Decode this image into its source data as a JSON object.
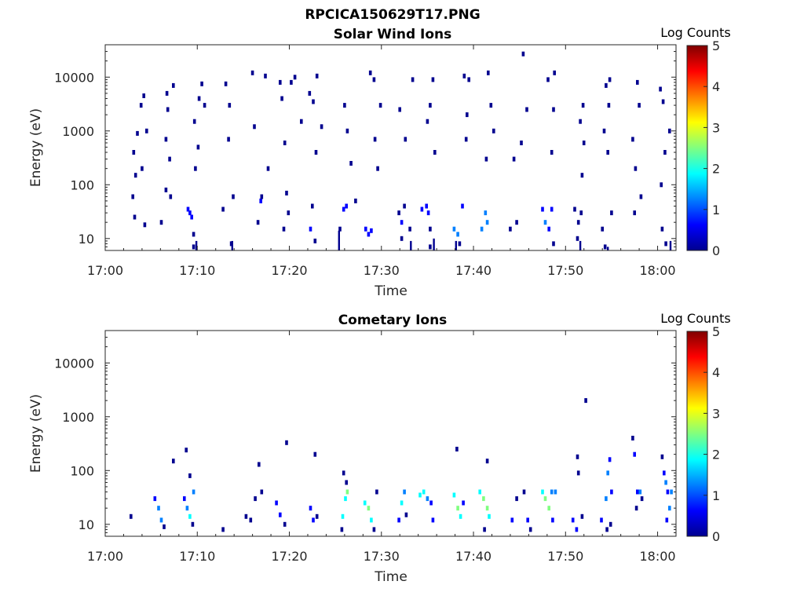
{
  "figure": {
    "title": "RPCICA150629T17.PNG"
  },
  "colorscale": [
    "#00008f",
    "#0000ff",
    "#0080ff",
    "#00ffff",
    "#80ff80",
    "#ffff00",
    "#ff8000",
    "#ff0000",
    "#800000"
  ],
  "chart_data": [
    {
      "type": "heatmap",
      "title": "Solar Wind Ions",
      "xlabel": "Time",
      "ylabel": "Energy (eV)",
      "x_ticks": [
        "17:00",
        "17:10",
        "17:20",
        "17:30",
        "17:40",
        "17:50",
        "18:00"
      ],
      "x_range_minutes": [
        0,
        62
      ],
      "y_ticks": [
        "10",
        "100",
        "1000",
        "10000"
      ],
      "y_scale": "log",
      "y_range": [
        6,
        40000
      ],
      "colorbar": {
        "label": "Log Counts",
        "ticks": [
          "0",
          "1",
          "2",
          "3",
          "4",
          "5"
        ],
        "range": [
          0,
          5
        ]
      },
      "cells": [
        [
          3.0,
          60,
          0.2
        ],
        [
          3.2,
          25,
          0.2
        ],
        [
          3.1,
          400,
          0.2
        ],
        [
          3.3,
          150,
          0.2
        ],
        [
          3.5,
          900,
          0.2
        ],
        [
          3.9,
          3000,
          0.2
        ],
        [
          4.2,
          4500,
          0.2
        ],
        [
          4.0,
          200,
          0.2
        ],
        [
          4.5,
          1000,
          0.2
        ],
        [
          4.3,
          18,
          0.2
        ],
        [
          6.1,
          20,
          0.2
        ],
        [
          6.6,
          80,
          0.2
        ],
        [
          6.7,
          5000,
          0.2
        ],
        [
          6.8,
          2500,
          0.2
        ],
        [
          6.6,
          700,
          0.2
        ],
        [
          7.0,
          300,
          0.2
        ],
        [
          7.4,
          7000,
          0.2
        ],
        [
          7.1,
          60,
          0.2
        ],
        [
          9.2,
          30,
          0.4
        ],
        [
          9.0,
          35,
          0.4
        ],
        [
          9.4,
          25,
          0.4
        ],
        [
          9.6,
          12,
          0.2
        ],
        [
          9.6,
          7,
          0.2
        ],
        [
          9.8,
          200,
          0.2
        ],
        [
          10.2,
          4000,
          0.2
        ],
        [
          10.8,
          3000,
          0.2
        ],
        [
          10.5,
          7500,
          0.2
        ],
        [
          9.7,
          1500,
          0.2
        ],
        [
          10.1,
          500,
          0.2
        ],
        [
          12.8,
          35,
          0.2
        ],
        [
          13.1,
          7500,
          0.2
        ],
        [
          13.5,
          3000,
          0.2
        ],
        [
          13.9,
          60,
          0.2
        ],
        [
          13.4,
          700,
          0.2
        ],
        [
          13.7,
          8,
          0.2
        ],
        [
          16.0,
          12000,
          0.2
        ],
        [
          16.2,
          1200,
          0.2
        ],
        [
          16.6,
          20,
          0.2
        ],
        [
          16.9,
          50,
          0.4
        ],
        [
          17.0,
          60,
          0.2
        ],
        [
          17.7,
          200,
          0.2
        ],
        [
          17.4,
          10500,
          0.2
        ],
        [
          19.0,
          8000,
          0.2
        ],
        [
          19.2,
          4000,
          0.2
        ],
        [
          19.5,
          600,
          0.2
        ],
        [
          19.9,
          30,
          0.2
        ],
        [
          20.2,
          8000,
          0.2
        ],
        [
          19.4,
          15,
          0.2
        ],
        [
          20.6,
          10000,
          0.2
        ],
        [
          19.7,
          70,
          0.2
        ],
        [
          21.3,
          1500,
          0.2
        ],
        [
          22.2,
          5000,
          0.2
        ],
        [
          22.6,
          3500,
          0.2
        ],
        [
          22.3,
          15,
          0.4
        ],
        [
          22.5,
          40,
          0.2
        ],
        [
          22.8,
          9,
          0.2
        ],
        [
          23.0,
          10500,
          0.2
        ],
        [
          22.9,
          400,
          0.2
        ],
        [
          23.5,
          1200,
          0.2
        ],
        [
          25.5,
          15,
          0.2
        ],
        [
          25.9,
          35,
          0.6
        ],
        [
          26.2,
          40,
          0.4
        ],
        [
          26.0,
          3000,
          0.2
        ],
        [
          26.3,
          1000,
          0.2
        ],
        [
          27.2,
          50,
          0.2
        ],
        [
          26.7,
          250,
          0.2
        ],
        [
          28.3,
          15,
          0.6
        ],
        [
          28.6,
          12,
          0.8
        ],
        [
          28.9,
          14,
          0.6
        ],
        [
          28.8,
          12000,
          0.2
        ],
        [
          29.2,
          9000,
          0.2
        ],
        [
          29.9,
          3000,
          0.2
        ],
        [
          29.6,
          200,
          0.2
        ],
        [
          29.3,
          700,
          0.2
        ],
        [
          31.9,
          30,
          0.2
        ],
        [
          32.2,
          20,
          0.6
        ],
        [
          32.5,
          40,
          0.2
        ],
        [
          32.2,
          10,
          0.2
        ],
        [
          33.1,
          15,
          0.2
        ],
        [
          32.0,
          2500,
          0.2
        ],
        [
          33.4,
          9000,
          0.2
        ],
        [
          32.6,
          700,
          0.2
        ],
        [
          34.4,
          35,
          0.4
        ],
        [
          34.9,
          40,
          0.4
        ],
        [
          35.1,
          30,
          0.4
        ],
        [
          35.3,
          15,
          0.2
        ],
        [
          35.6,
          9000,
          0.2
        ],
        [
          35.3,
          3000,
          0.2
        ],
        [
          35.0,
          1500,
          0.2
        ],
        [
          35.8,
          400,
          0.2
        ],
        [
          35.3,
          7,
          0.2
        ],
        [
          37.9,
          15,
          1.0
        ],
        [
          38.3,
          12,
          1.0
        ],
        [
          38.5,
          8,
          0.2
        ],
        [
          38.8,
          40,
          0.6
        ],
        [
          39.0,
          10500,
          0.2
        ],
        [
          39.3,
          2000,
          0.2
        ],
        [
          39.5,
          9000,
          0.2
        ],
        [
          39.2,
          700,
          0.2
        ],
        [
          40.9,
          15,
          1.0
        ],
        [
          41.3,
          30,
          1.0
        ],
        [
          41.5,
          20,
          1.0
        ],
        [
          41.6,
          12000,
          0.2
        ],
        [
          41.9,
          3000,
          0.2
        ],
        [
          42.2,
          1000,
          0.2
        ],
        [
          41.4,
          300,
          0.2
        ],
        [
          44.0,
          15,
          0.2
        ],
        [
          44.7,
          20,
          0.2
        ],
        [
          44.4,
          300,
          0.2
        ],
        [
          45.2,
          600,
          0.2
        ],
        [
          45.4,
          27000,
          0.2
        ],
        [
          45.8,
          2500,
          0.2
        ],
        [
          47.5,
          35,
          0.6
        ],
        [
          47.8,
          20,
          1.0
        ],
        [
          48.2,
          15,
          0.8
        ],
        [
          48.5,
          35,
          0.4
        ],
        [
          48.1,
          9000,
          0.2
        ],
        [
          48.8,
          12000,
          0.2
        ],
        [
          48.5,
          400,
          0.2
        ],
        [
          48.7,
          2500,
          0.2
        ],
        [
          48.7,
          8,
          0.2
        ],
        [
          51.0,
          35,
          0.2
        ],
        [
          51.4,
          20,
          0.2
        ],
        [
          51.3,
          10,
          0.2
        ],
        [
          51.6,
          1500,
          0.2
        ],
        [
          51.8,
          150,
          0.2
        ],
        [
          52.0,
          600,
          0.2
        ],
        [
          51.9,
          3000,
          0.2
        ],
        [
          51.7,
          30,
          0.2
        ],
        [
          54.0,
          15,
          0.2
        ],
        [
          54.4,
          7000,
          0.2
        ],
        [
          54.8,
          9000,
          0.2
        ],
        [
          54.6,
          400,
          0.2
        ],
        [
          54.7,
          3000,
          0.2
        ],
        [
          54.2,
          1000,
          0.2
        ],
        [
          55.0,
          30,
          0.2
        ],
        [
          54.3,
          7,
          0.2
        ],
        [
          57.3,
          700,
          0.2
        ],
        [
          57.6,
          200,
          0.2
        ],
        [
          57.8,
          8000,
          0.2
        ],
        [
          58.0,
          3000,
          0.2
        ],
        [
          58.2,
          60,
          0.2
        ],
        [
          57.5,
          30,
          0.2
        ],
        [
          60.3,
          6000,
          0.2
        ],
        [
          60.6,
          3500,
          0.2
        ],
        [
          60.8,
          400,
          0.2
        ],
        [
          60.4,
          100,
          0.2
        ],
        [
          60.5,
          15,
          0.2
        ],
        [
          61.3,
          1000,
          0.2
        ],
        [
          60.9,
          8,
          0.2
        ]
      ],
      "streaks": [
        [
          9.9,
          6,
          9
        ],
        [
          13.8,
          6,
          9
        ],
        [
          25.4,
          6,
          14
        ],
        [
          33.2,
          6,
          9
        ],
        [
          35.7,
          6,
          10
        ],
        [
          38.1,
          6,
          9
        ],
        [
          51.6,
          6,
          9
        ],
        [
          54.6,
          6,
          7
        ],
        [
          61.4,
          6,
          9
        ]
      ]
    },
    {
      "type": "heatmap",
      "title": "Cometary Ions",
      "xlabel": "Time",
      "ylabel": "Energy (eV)",
      "x_ticks": [
        "17:00",
        "17:10",
        "17:20",
        "17:30",
        "17:40",
        "17:50",
        "18:00"
      ],
      "x_range_minutes": [
        0,
        62
      ],
      "y_ticks": [
        "10",
        "100",
        "1000",
        "10000"
      ],
      "y_scale": "log",
      "y_range": [
        6,
        40000
      ],
      "colorbar": {
        "label": "Log Counts",
        "ticks": [
          "0",
          "1",
          "2",
          "3",
          "4",
          "5"
        ],
        "range": [
          0,
          5
        ]
      },
      "cells": [
        [
          2.8,
          14,
          0.2
        ],
        [
          5.4,
          30,
          0.6
        ],
        [
          5.8,
          20,
          1.0
        ],
        [
          6.1,
          12,
          1.0
        ],
        [
          6.4,
          9,
          0.2
        ],
        [
          7.4,
          150,
          0.2
        ],
        [
          8.6,
          30,
          0.4
        ],
        [
          8.9,
          20,
          1.0
        ],
        [
          9.2,
          14,
          1.6
        ],
        [
          9.6,
          40,
          1.0
        ],
        [
          9.5,
          10,
          0.2
        ],
        [
          8.8,
          240,
          0.2
        ],
        [
          9.2,
          80,
          0.2
        ],
        [
          12.8,
          8,
          0.2
        ],
        [
          15.3,
          14,
          0.2
        ],
        [
          15.8,
          12,
          0.2
        ],
        [
          16.3,
          30,
          0.2
        ],
        [
          16.7,
          130,
          0.2
        ],
        [
          17.0,
          40,
          0.2
        ],
        [
          18.6,
          25,
          0.4
        ],
        [
          19.0,
          15,
          0.8
        ],
        [
          19.5,
          10,
          0.2
        ],
        [
          19.7,
          330,
          0.2
        ],
        [
          22.3,
          20,
          0.6
        ],
        [
          22.6,
          12,
          0.8
        ],
        [
          22.8,
          200,
          0.2
        ],
        [
          23.0,
          14,
          0.2
        ],
        [
          25.8,
          14,
          1.6
        ],
        [
          26.1,
          30,
          2.0
        ],
        [
          26.3,
          40,
          2.8
        ],
        [
          25.9,
          90,
          0.2
        ],
        [
          26.2,
          60,
          0.2
        ],
        [
          25.7,
          8,
          0.2
        ],
        [
          28.2,
          25,
          1.6
        ],
        [
          28.6,
          20,
          2.2
        ],
        [
          28.9,
          12,
          1.8
        ],
        [
          29.2,
          8,
          0.2
        ],
        [
          29.5,
          40,
          0.2
        ],
        [
          31.9,
          12,
          0.4
        ],
        [
          32.2,
          25,
          1.6
        ],
        [
          32.5,
          40,
          1.0
        ],
        [
          32.7,
          15,
          0.2
        ],
        [
          34.2,
          35,
          1.6
        ],
        [
          34.6,
          40,
          1.8
        ],
        [
          35.0,
          30,
          1.0
        ],
        [
          35.4,
          25,
          0.8
        ],
        [
          35.6,
          12,
          0.4
        ],
        [
          37.9,
          35,
          1.8
        ],
        [
          38.3,
          20,
          2.2
        ],
        [
          38.6,
          14,
          1.6
        ],
        [
          38.9,
          25,
          0.8
        ],
        [
          38.2,
          250,
          0.2
        ],
        [
          40.7,
          40,
          1.8
        ],
        [
          41.1,
          30,
          2.6
        ],
        [
          41.5,
          20,
          2.8
        ],
        [
          41.7,
          14,
          1.8
        ],
        [
          41.5,
          150,
          0.2
        ],
        [
          41.2,
          8,
          0.2
        ],
        [
          44.2,
          12,
          0.8
        ],
        [
          44.7,
          30,
          0.2
        ],
        [
          45.5,
          40,
          0.2
        ],
        [
          45.9,
          12,
          0.6
        ],
        [
          46.2,
          8,
          0.2
        ],
        [
          47.5,
          40,
          1.6
        ],
        [
          47.8,
          30,
          2.4
        ],
        [
          48.2,
          20,
          2.6
        ],
        [
          48.5,
          40,
          1.4
        ],
        [
          48.9,
          40,
          1.0
        ],
        [
          48.6,
          12,
          0.4
        ],
        [
          50.8,
          12,
          0.8
        ],
        [
          51.2,
          8,
          0.4
        ],
        [
          51.3,
          180,
          0.2
        ],
        [
          51.4,
          90,
          0.2
        ],
        [
          52.2,
          2000,
          0.2
        ],
        [
          51.8,
          14,
          0.2
        ],
        [
          53.9,
          12,
          0.8
        ],
        [
          54.4,
          30,
          1.2
        ],
        [
          54.6,
          90,
          1.0
        ],
        [
          54.8,
          160,
          0.8
        ],
        [
          55.0,
          40,
          0.6
        ],
        [
          54.5,
          8,
          0.2
        ],
        [
          54.9,
          10,
          0.2
        ],
        [
          57.3,
          400,
          0.2
        ],
        [
          57.5,
          200,
          0.4
        ],
        [
          57.7,
          20,
          0.2
        ],
        [
          57.8,
          40,
          0.8
        ],
        [
          58.1,
          40,
          1.4
        ],
        [
          58.3,
          30,
          0.2
        ],
        [
          60.5,
          180,
          0.2
        ],
        [
          60.7,
          90,
          0.6
        ],
        [
          60.9,
          60,
          1.0
        ],
        [
          61.1,
          40,
          0.8
        ],
        [
          61.3,
          20,
          1.2
        ],
        [
          61.5,
          40,
          1.2
        ],
        [
          61.0,
          12,
          0.4
        ]
      ],
      "streaks": []
    }
  ]
}
